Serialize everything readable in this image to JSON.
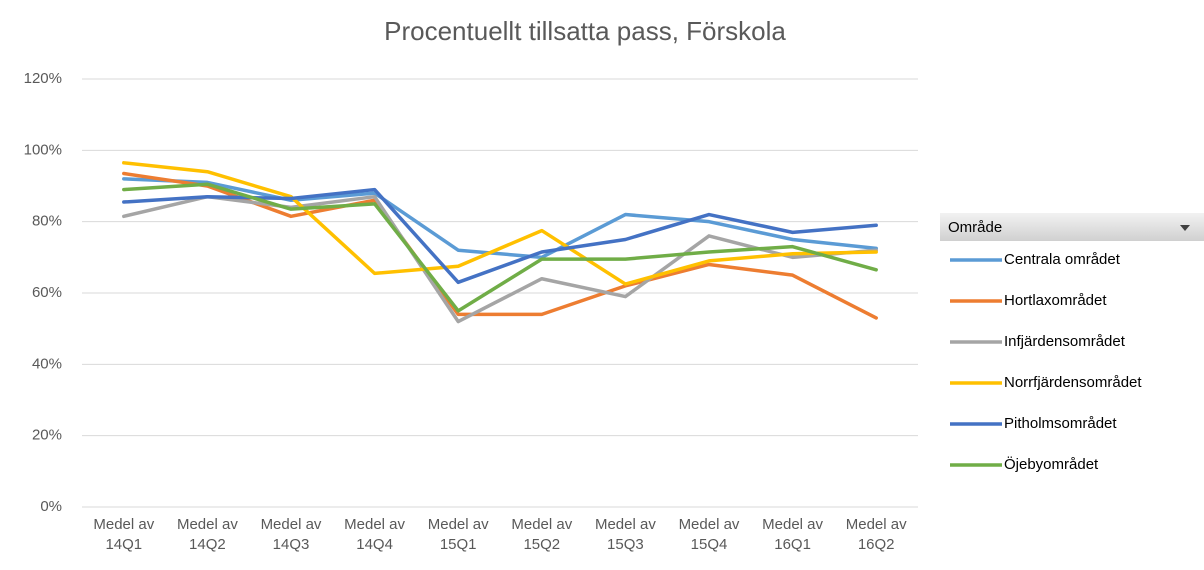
{
  "chart_data": {
    "type": "line",
    "title": "Procentuellt tillsatta pass, Förskola",
    "categories": [
      "Medel av 14Q1",
      "Medel av 14Q2",
      "Medel av 14Q3",
      "Medel av 14Q4",
      "Medel av 15Q1",
      "Medel av 15Q2",
      "Medel av 15Q3",
      "Medel av 15Q4",
      "Medel av 16Q1",
      "Medel av 16Q2"
    ],
    "series": [
      {
        "name": "Centrala området",
        "color": "#5b9bd5",
        "values": [
          92,
          91,
          86,
          88,
          72,
          70,
          82,
          80,
          75,
          72.5
        ]
      },
      {
        "name": "Hortlaxområdet",
        "color": "#ed7d31",
        "values": [
          93.5,
          90,
          81.5,
          86,
          54,
          54,
          62,
          68,
          65,
          53
        ]
      },
      {
        "name": "Infjärdensområdet",
        "color": "#a5a5a5",
        "values": [
          81.5,
          87,
          84,
          87,
          52,
          64,
          59,
          76,
          70,
          72
        ]
      },
      {
        "name": "Norrfjärdensområdet",
        "color": "#ffc000",
        "values": [
          96.5,
          94,
          87,
          65.5,
          67.5,
          77.5,
          62.5,
          69,
          71,
          71.5
        ]
      },
      {
        "name": "Pitholmsområdet",
        "color": "#4472c4",
        "values": [
          85.5,
          87,
          86.5,
          89,
          63,
          71.5,
          75,
          82,
          77,
          79
        ]
      },
      {
        "name": "Öjebyområdet",
        "color": "#70ad47",
        "values": [
          89,
          90.5,
          83.5,
          85,
          55,
          69.5,
          69.5,
          71.5,
          73,
          66.5
        ]
      }
    ],
    "legend_title": "Område",
    "ylim": [
      0,
      120
    ],
    "yticks": [
      {
        "value": 0,
        "label": "0%"
      },
      {
        "value": 20,
        "label": "20%"
      },
      {
        "value": 40,
        "label": "40%"
      },
      {
        "value": 60,
        "label": "60%"
      },
      {
        "value": 80,
        "label": "80%"
      },
      {
        "value": 100,
        "label": "100%"
      },
      {
        "value": 120,
        "label": "120%"
      }
    ],
    "grid": true,
    "legend": "right"
  }
}
